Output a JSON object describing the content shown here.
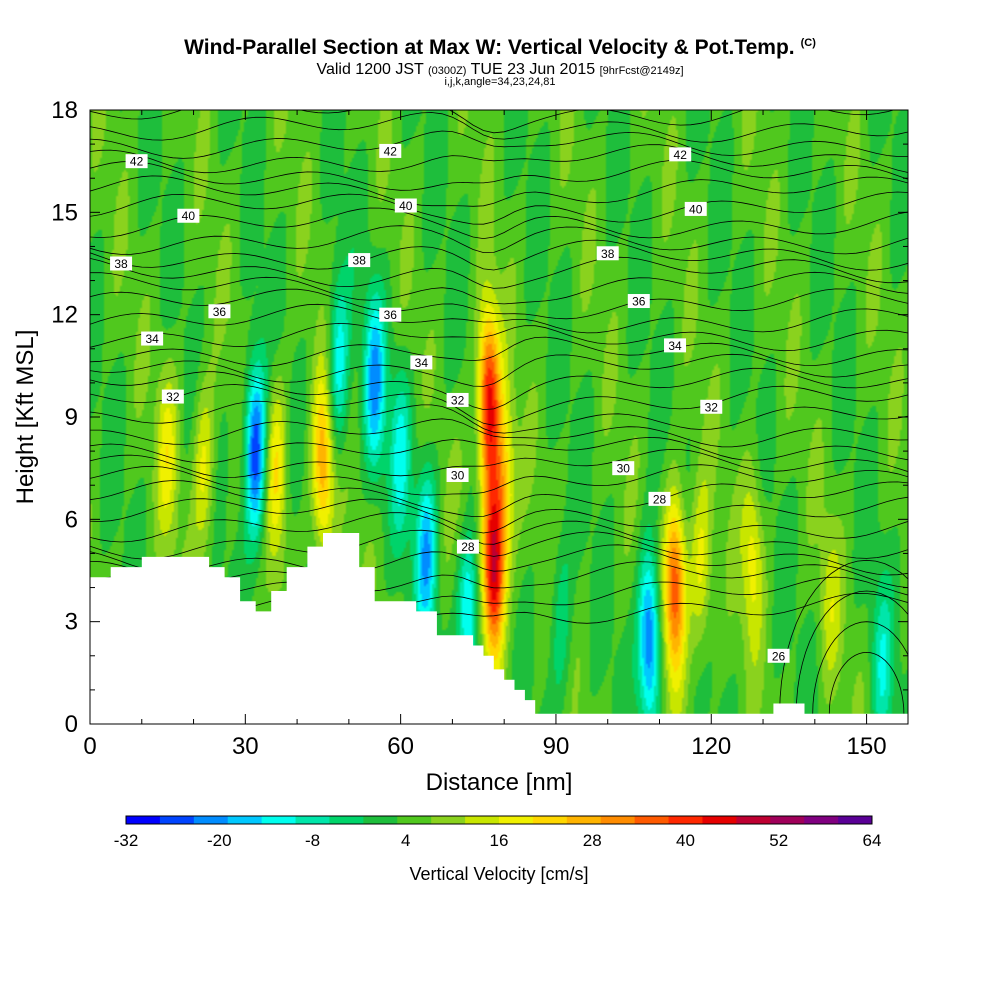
{
  "title": {
    "main": "Wind-Parallel Section at Max W: Vertical Velocity & Pot.Temp.",
    "main_mark": "(C)",
    "valid_prefix": "Valid 1200 JST",
    "valid_zulu": "(0300Z)",
    "valid_date": "TUE 23 Jun 2015",
    "forecast": "[9hrFcst@2149z]",
    "params": "i,j,k,angle=34,23,24,81"
  },
  "chart_data": {
    "type": "heatmap",
    "xlabel": "Distance [nm]",
    "ylabel": "Height [Kft MSL]",
    "xlim": [
      0,
      158
    ],
    "ylim": [
      0,
      18
    ],
    "xticks": [
      0,
      30,
      60,
      90,
      120,
      150
    ],
    "yticks": [
      0,
      3,
      6,
      9,
      12,
      15,
      18
    ],
    "colorbar": {
      "label": "Vertical Velocity [cm/s]",
      "ticks": [
        "-32",
        "-20",
        "-8",
        "4",
        "16",
        "28",
        "40",
        "52",
        "64"
      ],
      "min": -32,
      "max": 64,
      "colors": [
        "#0000ff",
        "#0044ff",
        "#008cff",
        "#00c8ff",
        "#00ffee",
        "#00e6aa",
        "#00d46a",
        "#1ebe3c",
        "#50c81e",
        "#8ad21e",
        "#c8e600",
        "#f0f000",
        "#ffd700",
        "#ffb400",
        "#ff8c00",
        "#ff5a00",
        "#ff2800",
        "#e60000",
        "#be0032",
        "#a0005a",
        "#800080",
        "#5a0096"
      ]
    },
    "terrain": [
      [
        0,
        4.3
      ],
      [
        4,
        4.3
      ],
      [
        4,
        4.6
      ],
      [
        10,
        4.6
      ],
      [
        10,
        4.9
      ],
      [
        23,
        4.9
      ],
      [
        23,
        4.6
      ],
      [
        26,
        4.6
      ],
      [
        26,
        4.3
      ],
      [
        29,
        4.3
      ],
      [
        29,
        3.6
      ],
      [
        32,
        3.6
      ],
      [
        32,
        3.3
      ],
      [
        35,
        3.3
      ],
      [
        35,
        3.9
      ],
      [
        38,
        3.9
      ],
      [
        38,
        4.6
      ],
      [
        42,
        4.6
      ],
      [
        42,
        5.2
      ],
      [
        45,
        5.2
      ],
      [
        45,
        5.6
      ],
      [
        52,
        5.6
      ],
      [
        52,
        4.6
      ],
      [
        55,
        4.6
      ],
      [
        55,
        3.6
      ],
      [
        63,
        3.6
      ],
      [
        63,
        3.3
      ],
      [
        67,
        3.3
      ],
      [
        67,
        2.6
      ],
      [
        74,
        2.6
      ],
      [
        74,
        2.3
      ],
      [
        76,
        2.3
      ],
      [
        76,
        2.0
      ],
      [
        78,
        2.0
      ],
      [
        78,
        1.6
      ],
      [
        80,
        1.6
      ],
      [
        80,
        1.3
      ],
      [
        82,
        1.3
      ],
      [
        82,
        1.0
      ],
      [
        84,
        1.0
      ],
      [
        84,
        0.7
      ],
      [
        86,
        0.7
      ],
      [
        86,
        0.3
      ],
      [
        132,
        0.3
      ],
      [
        132,
        0.6
      ],
      [
        138,
        0.6
      ],
      [
        138,
        0.3
      ],
      [
        158,
        0.3
      ]
    ],
    "updraft_cores": [
      {
        "x": 15,
        "y": 8,
        "w": 12
      },
      {
        "x": 22,
        "y": 7.5,
        "w": 14
      },
      {
        "x": 36,
        "y": 7.5,
        "w": 16
      },
      {
        "x": 45,
        "y": 7.5,
        "w": 25
      },
      {
        "x": 72.5,
        "y": 5.5,
        "w": 8
      },
      {
        "x": 77,
        "y": 9.5,
        "w": 40
      },
      {
        "x": 78,
        "y": 4.5,
        "w": 45
      },
      {
        "x": 80,
        "y": 7,
        "w": 18
      },
      {
        "x": 113,
        "y": 4,
        "w": 35
      },
      {
        "x": 118,
        "y": 4.5,
        "w": 14
      },
      {
        "x": 128,
        "y": 5,
        "w": 14
      },
      {
        "x": 143,
        "y": 3.5,
        "w": 8
      }
    ],
    "downdraft_cores": [
      {
        "x": 32,
        "y": 8,
        "w": -32
      },
      {
        "x": 48,
        "y": 10.5,
        "w": -18
      },
      {
        "x": 55,
        "y": 10,
        "w": -22
      },
      {
        "x": 60,
        "y": 8,
        "w": -14
      },
      {
        "x": 65,
        "y": 5,
        "w": -22
      },
      {
        "x": 73,
        "y": 3.5,
        "w": -26
      },
      {
        "x": 91,
        "y": 3,
        "w": -10
      },
      {
        "x": 108,
        "y": 2.5,
        "w": -30
      },
      {
        "x": 153,
        "y": 1.5,
        "w": -12
      }
    ],
    "theta_contours": [
      {
        "label": "26",
        "label_x": 133,
        "label_y": 2.0
      },
      {
        "label": "28",
        "label_x": 73,
        "label_y": 5.2
      },
      {
        "label": "28",
        "label_x": 110,
        "label_y": 6.6
      },
      {
        "label": "30",
        "label_x": 71,
        "label_y": 7.3
      },
      {
        "label": "30",
        "label_x": 103,
        "label_y": 7.5
      },
      {
        "label": "32",
        "label_x": 16,
        "label_y": 9.6
      },
      {
        "label": "32",
        "label_x": 71,
        "label_y": 9.5
      },
      {
        "label": "32",
        "label_x": 120,
        "label_y": 9.3
      },
      {
        "label": "34",
        "label_x": 12,
        "label_y": 11.3
      },
      {
        "label": "34",
        "label_x": 64,
        "label_y": 10.6
      },
      {
        "label": "34",
        "label_x": 113,
        "label_y": 11.1
      },
      {
        "label": "36",
        "label_x": 25,
        "label_y": 12.1
      },
      {
        "label": "36",
        "label_x": 58,
        "label_y": 12.0
      },
      {
        "label": "36",
        "label_x": 106,
        "label_y": 12.4
      },
      {
        "label": "38",
        "label_x": 6,
        "label_y": 13.5
      },
      {
        "label": "38",
        "label_x": 52,
        "label_y": 13.6
      },
      {
        "label": "38",
        "label_x": 100,
        "label_y": 13.8
      },
      {
        "label": "40",
        "label_x": 19,
        "label_y": 14.9
      },
      {
        "label": "40",
        "label_x": 61,
        "label_y": 15.2
      },
      {
        "label": "40",
        "label_x": 117,
        "label_y": 15.1
      },
      {
        "label": "42",
        "label_x": 9,
        "label_y": 16.5
      },
      {
        "label": "42",
        "label_x": 58,
        "label_y": 16.8
      },
      {
        "label": "42",
        "label_x": 114,
        "label_y": 16.7
      }
    ]
  }
}
